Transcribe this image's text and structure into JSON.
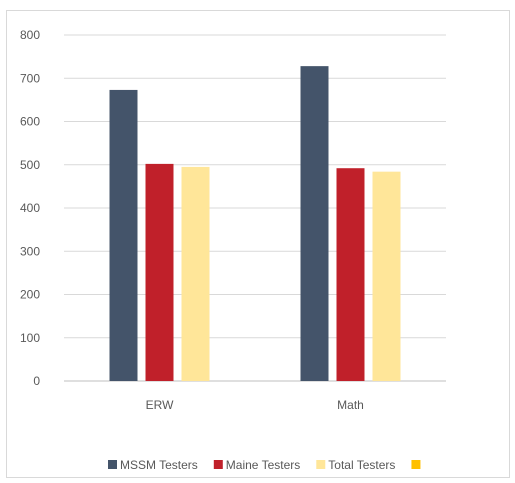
{
  "chart_data": {
    "type": "bar",
    "title": "",
    "xlabel": "",
    "ylabel": "",
    "categories": [
      "ERW",
      "Math"
    ],
    "ylim": [
      0,
      800
    ],
    "yticks": [
      0,
      100,
      200,
      300,
      400,
      500,
      600,
      700,
      800
    ],
    "grid": true,
    "legend_position": "bottom",
    "series": [
      {
        "name": "MSSM Testers",
        "color": "#44546a",
        "values": [
          673,
          728
        ]
      },
      {
        "name": "Maine Testers",
        "color": "#c0202a",
        "values": [
          502,
          492
        ]
      },
      {
        "name": "Total Testers",
        "color": "#ffe699",
        "values": [
          495,
          484
        ]
      }
    ],
    "extra_legend_swatch_color": "#ffc000"
  }
}
